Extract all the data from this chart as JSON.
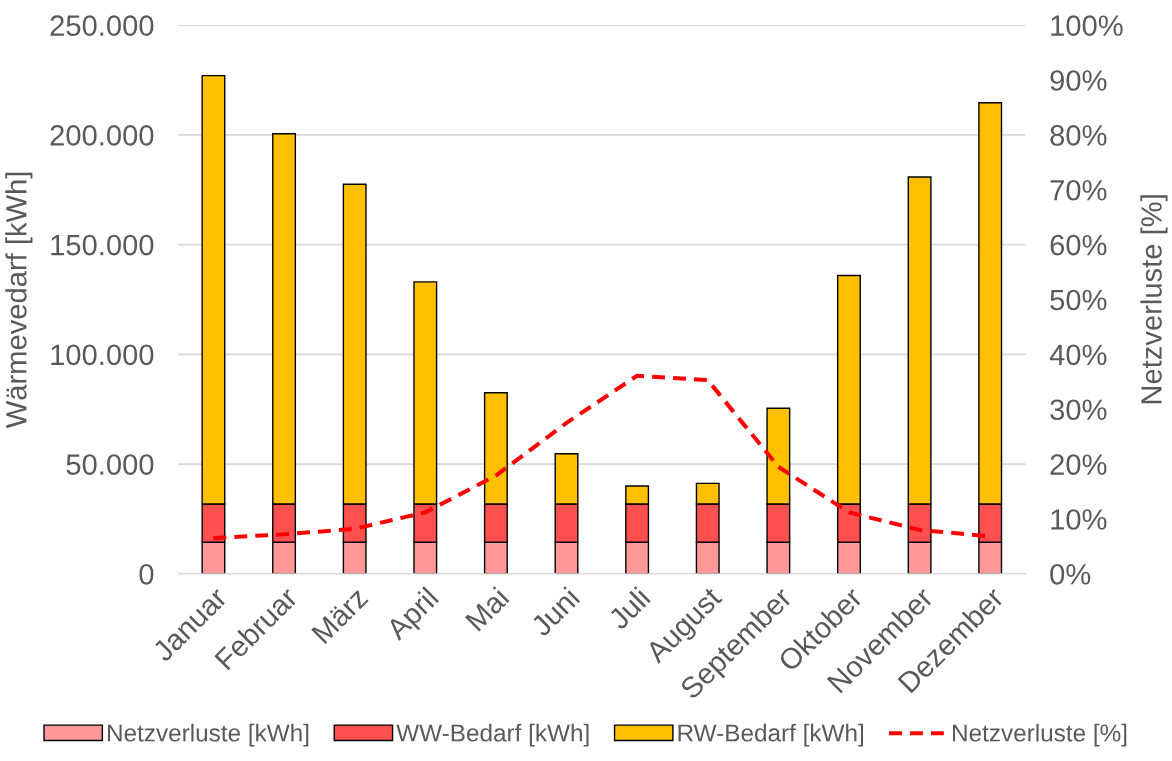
{
  "chart_data": {
    "type": "bar",
    "stacked": true,
    "categories": [
      "Januar",
      "Februar",
      "März",
      "April",
      "Mai",
      "Juni",
      "Juli",
      "August",
      "September",
      "Oktober",
      "November",
      "Dezember"
    ],
    "series": [
      {
        "name": "Netzverluste [kWh]",
        "color": "#ff9999",
        "values": [
          14400,
          14400,
          14400,
          14400,
          14400,
          14400,
          14400,
          14400,
          14400,
          14400,
          14400,
          14400
        ]
      },
      {
        "name": "WW-Bedarf [kWh]",
        "color": "#ff5050",
        "values": [
          17400,
          17400,
          17400,
          17400,
          17400,
          17400,
          17400,
          17400,
          17400,
          17400,
          17400,
          17400
        ]
      },
      {
        "name": "RW-Bedarf [kWh]",
        "color": "#ffc000",
        "values": [
          195200,
          168700,
          145700,
          101200,
          50700,
          22900,
          8200,
          9400,
          43600,
          104100,
          149000,
          182800
        ]
      },
      {
        "name": "Netzverluste [%]",
        "color": "#ff0000",
        "type": "line",
        "axis": "y2",
        "line_style": "dashed",
        "marker": "none",
        "values": [
          6.5,
          7.2,
          8.2,
          11.2,
          17.9,
          27.5,
          36.1,
          35.3,
          19.5,
          11.2,
          8.0,
          6.8
        ]
      }
    ],
    "ylabel": "Wärmevedarf [kWh]",
    "y2label": "Netzverluste [%]",
    "ylim": [
      0,
      250000
    ],
    "yticks": [
      {
        "value": 0,
        "label": "0"
      },
      {
        "value": 50000,
        "label": "50.000"
      },
      {
        "value": 100000,
        "label": "100.000"
      },
      {
        "value": 150000,
        "label": "150.000"
      },
      {
        "value": 200000,
        "label": "200.000"
      },
      {
        "value": 250000,
        "label": "250.000"
      }
    ],
    "y2lim": [
      0,
      100
    ],
    "y2ticks": [
      {
        "value": 0,
        "label": "0%"
      },
      {
        "value": 10,
        "label": "10%"
      },
      {
        "value": 20,
        "label": "20%"
      },
      {
        "value": 30,
        "label": "30%"
      },
      {
        "value": 40,
        "label": "40%"
      },
      {
        "value": 50,
        "label": "50%"
      },
      {
        "value": 60,
        "label": "60%"
      },
      {
        "value": 70,
        "label": "70%"
      },
      {
        "value": 80,
        "label": "80%"
      },
      {
        "value": 90,
        "label": "90%"
      },
      {
        "value": 100,
        "label": "100%"
      }
    ],
    "grid": "y",
    "legend": "bottom"
  }
}
